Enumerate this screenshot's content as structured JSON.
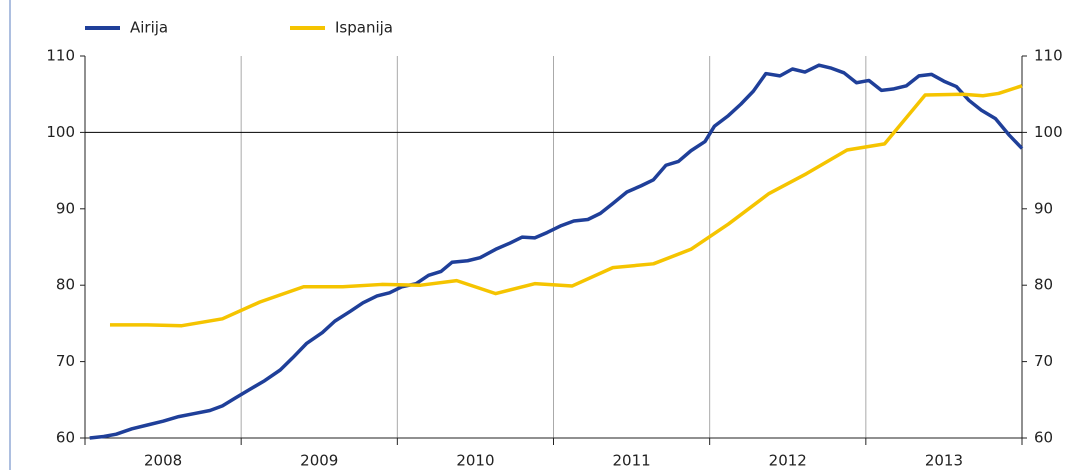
{
  "chart_data": {
    "type": "line",
    "categories": [
      "2008",
      "2009",
      "2010",
      "2011",
      "2012",
      "2013"
    ],
    "xlim": [
      2008,
      2014
    ],
    "ylim": [
      60,
      110
    ],
    "yticks": [
      60,
      70,
      80,
      90,
      100,
      110
    ],
    "hline": 100,
    "legend": "top-left",
    "series": [
      {
        "name": "Airija",
        "color": "#1f3f99",
        "x": [
          2008.03,
          2008.12,
          2008.2,
          2008.3,
          2008.4,
          2008.5,
          2008.6,
          2008.7,
          2008.8,
          2008.88,
          2008.96,
          2009.05,
          2009.15,
          2009.25,
          2009.33,
          2009.42,
          2009.52,
          2009.6,
          2009.7,
          2009.78,
          2009.87,
          2009.95,
          2010.03,
          2010.12,
          2010.2,
          2010.28,
          2010.35,
          2010.45,
          2010.53,
          2010.63,
          2010.72,
          2010.8,
          2010.88,
          2010.96,
          2011.05,
          2011.13,
          2011.22,
          2011.3,
          2011.38,
          2011.47,
          2011.56,
          2011.64,
          2011.72,
          2011.8,
          2011.88,
          2011.97,
          2012.03,
          2012.12,
          2012.2,
          2012.28,
          2012.36,
          2012.45,
          2012.53,
          2012.61,
          2012.7,
          2012.78,
          2012.86,
          2012.94,
          2013.02,
          2013.1,
          2013.18,
          2013.26,
          2013.34,
          2013.42,
          2013.5,
          2013.58,
          2013.66,
          2013.74,
          2013.83,
          2013.92,
          2014.0
        ],
        "values": [
          60.0,
          60.2,
          60.5,
          61.2,
          61.7,
          62.2,
          62.8,
          63.2,
          63.6,
          64.2,
          65.2,
          66.3,
          67.5,
          68.9,
          70.5,
          72.4,
          73.8,
          75.3,
          76.6,
          77.7,
          78.6,
          79.0,
          79.8,
          80.2,
          81.3,
          81.8,
          83.0,
          83.2,
          83.6,
          84.7,
          85.5,
          86.3,
          86.2,
          86.9,
          87.8,
          88.4,
          88.6,
          89.4,
          90.7,
          92.2,
          93.0,
          93.8,
          95.7,
          96.2,
          97.6,
          98.8,
          100.8,
          102.2,
          103.7,
          105.4,
          107.7,
          107.4,
          108.3,
          107.9,
          108.8,
          108.4,
          107.8,
          106.5,
          106.8,
          105.5,
          105.7,
          106.1,
          107.4,
          107.6,
          106.7,
          106.0,
          104.2,
          102.9,
          101.8,
          99.6,
          97.9
        ]
      },
      {
        "name": "Ispanija",
        "color": "#f5c400",
        "x": [
          2008.16,
          2008.4,
          2008.62,
          2008.88,
          2009.12,
          2009.4,
          2009.65,
          2009.9,
          2010.15,
          2010.38,
          2010.63,
          2010.88,
          2011.12,
          2011.38,
          2011.64,
          2011.88,
          2012.12,
          2012.38,
          2012.62,
          2012.88,
          2013.12,
          2013.38,
          2013.62,
          2013.75,
          2013.85,
          2014.0
        ],
        "values": [
          74.8,
          74.8,
          74.7,
          75.6,
          77.8,
          79.8,
          79.8,
          80.1,
          80.0,
          80.6,
          78.9,
          80.2,
          79.9,
          82.3,
          82.8,
          84.7,
          88.0,
          92.0,
          94.6,
          97.7,
          98.5,
          104.9,
          105.0,
          104.8,
          105.1,
          106.1
        ]
      }
    ]
  }
}
